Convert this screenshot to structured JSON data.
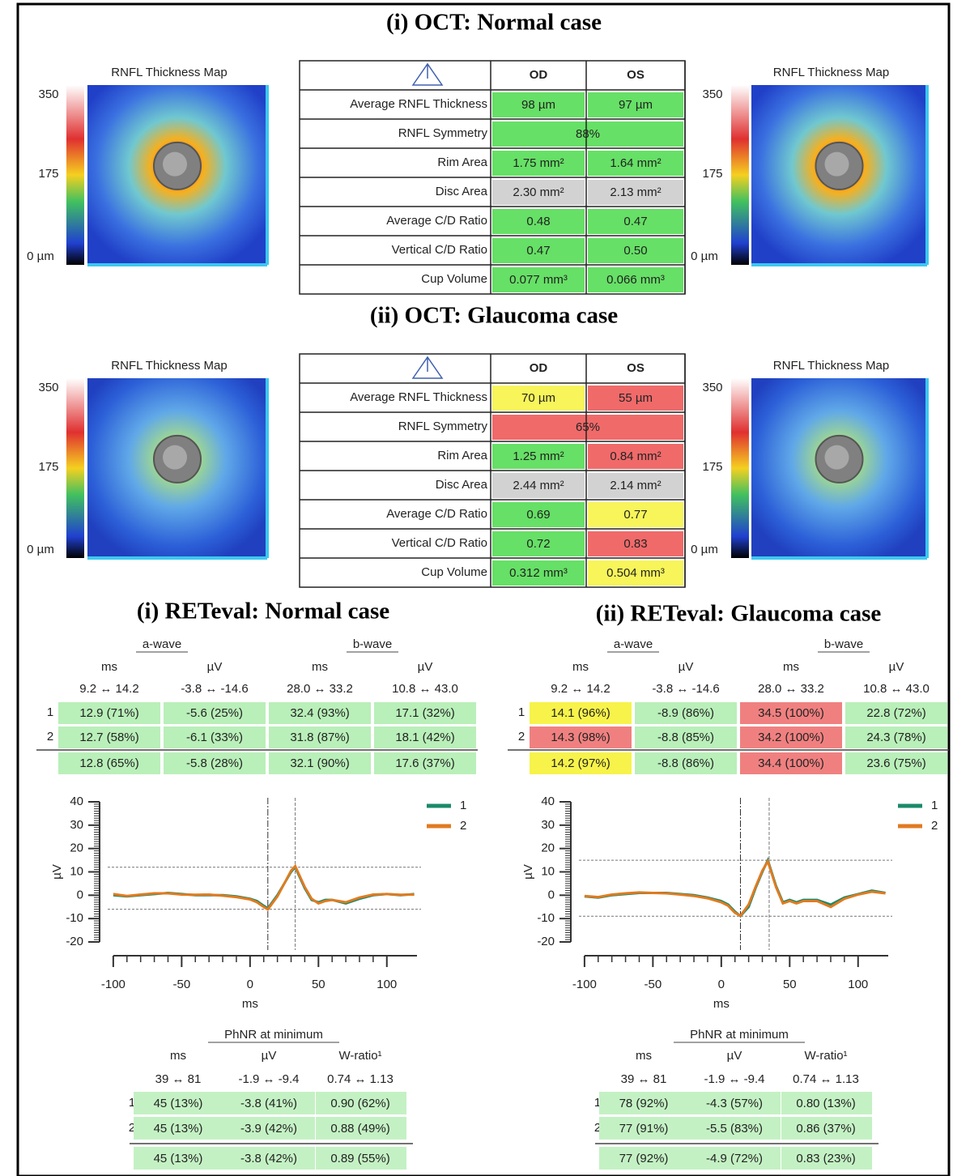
{
  "oct": [
    {
      "title": "(i) OCT: Normal case",
      "maps": [
        {
          "title": "RNFL Thickness Map",
          "scale": [
            "350",
            "175",
            "0 µm"
          ]
        },
        {
          "title": "RNFL Thickness Map",
          "scale": [
            "350",
            "175",
            "0 µm"
          ]
        }
      ],
      "table": {
        "header": [
          "OD",
          "OS"
        ],
        "rows": [
          {
            "label": "Average RNFL Thickness",
            "values": [
              "98 µm",
              "97 µm"
            ],
            "colors": [
              "#66e066",
              "#66e066"
            ]
          },
          {
            "label": "RNFL Symmetry",
            "values": [
              "88%"
            ],
            "colors": [
              "#66e066"
            ]
          },
          {
            "label": "Rim Area",
            "values": [
              "1.75 mm²",
              "1.64 mm²"
            ],
            "colors": [
              "#66e066",
              "#66e066"
            ]
          },
          {
            "label": "Disc Area",
            "values": [
              "2.30 mm²",
              "2.13 mm²"
            ],
            "colors": [
              "#d2d2d2",
              "#d2d2d2"
            ]
          },
          {
            "label": "Average C/D Ratio",
            "values": [
              "0.48",
              "0.47"
            ],
            "colors": [
              "#66e066",
              "#66e066"
            ]
          },
          {
            "label": "Vertical C/D Ratio",
            "values": [
              "0.47",
              "0.50"
            ],
            "colors": [
              "#66e066",
              "#66e066"
            ]
          },
          {
            "label": "Cup Volume",
            "values": [
              "0.077 mm³",
              "0.066 mm³"
            ],
            "colors": [
              "#66e066",
              "#66e066"
            ]
          }
        ]
      }
    },
    {
      "title": "(ii) OCT: Glaucoma case",
      "maps": [
        {
          "title": "RNFL Thickness Map",
          "scale": [
            "350",
            "175",
            "0 µm"
          ]
        },
        {
          "title": "RNFL Thickness Map",
          "scale": [
            "350",
            "175",
            "0 µm"
          ]
        }
      ],
      "table": {
        "header": [
          "OD",
          "OS"
        ],
        "rows": [
          {
            "label": "Average RNFL Thickness",
            "values": [
              "70 µm",
              "55 µm"
            ],
            "colors": [
              "#f7f55a",
              "#f06a6a"
            ]
          },
          {
            "label": "RNFL Symmetry",
            "values": [
              "65%"
            ],
            "colors": [
              "#f06a6a"
            ]
          },
          {
            "label": "Rim Area",
            "values": [
              "1.25 mm²",
              "0.84 mm²"
            ],
            "colors": [
              "#66e066",
              "#f06a6a"
            ]
          },
          {
            "label": "Disc Area",
            "values": [
              "2.44 mm²",
              "2.14 mm²"
            ],
            "colors": [
              "#d2d2d2",
              "#d2d2d2"
            ]
          },
          {
            "label": "Average C/D Ratio",
            "values": [
              "0.69",
              "0.77"
            ],
            "colors": [
              "#66e066",
              "#f7f55a"
            ]
          },
          {
            "label": "Vertical C/D Ratio",
            "values": [
              "0.72",
              "0.83"
            ],
            "colors": [
              "#66e066",
              "#f06a6a"
            ]
          },
          {
            "label": "Cup Volume",
            "values": [
              "0.312 mm³",
              "0.504 mm³"
            ],
            "colors": [
              "#66e066",
              "#f7f55a"
            ]
          }
        ]
      }
    }
  ],
  "reteval": [
    {
      "title": "(i) RETeval: Normal case",
      "groups": [
        "a-wave",
        "b-wave"
      ],
      "units": [
        "ms",
        "µV",
        "ms",
        "µV"
      ],
      "ranges": [
        "9.2 ↔ 14.2",
        "-3.8 ↔ -14.6",
        "28.0 ↔ 33.2",
        "10.8 ↔ 43.0"
      ],
      "rows": [
        {
          "label": "1",
          "values": [
            "12.9 (71%)",
            "-5.6 (25%)",
            "32.4 (93%)",
            "17.1 (32%)"
          ],
          "colors": [
            "#b9efb9",
            "#b9efb9",
            "#b9efb9",
            "#b9efb9"
          ]
        },
        {
          "label": "2",
          "values": [
            "12.7 (58%)",
            "-6.1 (33%)",
            "31.8 (87%)",
            "18.1 (42%)"
          ],
          "colors": [
            "#b9efb9",
            "#b9efb9",
            "#b9efb9",
            "#b9efb9"
          ]
        },
        {
          "values": [
            "12.8 (65%)",
            "-5.8 (28%)",
            "32.1 (90%)",
            "17.6 (37%)"
          ],
          "colors": [
            "#b9efb9",
            "#b9efb9",
            "#b9efb9",
            "#b9efb9"
          ]
        }
      ],
      "chart": {
        "type": "line",
        "xlabel": "ms",
        "ylabel": "µV",
        "x": [
          -100,
          -90,
          -80,
          -70,
          -60,
          -50,
          -40,
          -30,
          -20,
          -10,
          0,
          5,
          10,
          13,
          20,
          25,
          30,
          33,
          40,
          45,
          50,
          55,
          60,
          70,
          80,
          90,
          100,
          110,
          120
        ],
        "series": [
          {
            "name": "1",
            "color": "#1a8a6a",
            "values": [
              0,
              -0.5,
              0,
              0.5,
              1,
              0.5,
              0,
              0,
              0,
              -0.5,
              -1.5,
              -2.5,
              -4.5,
              -5.6,
              0,
              5,
              10,
              12,
              3,
              -2,
              -3,
              -2,
              -2,
              -3.5,
              -1.5,
              0,
              0.5,
              0,
              0.5
            ]
          },
          {
            "name": "2",
            "color": "#e07b20",
            "values": [
              0.5,
              -0.3,
              0.3,
              0.8,
              0.8,
              0.3,
              0.2,
              0.3,
              -0.2,
              -0.8,
              -1.8,
              -3,
              -5,
              -6.1,
              -0.5,
              5,
              10.5,
              12.5,
              3.5,
              -1.5,
              -3.5,
              -2.5,
              -2,
              -3,
              -1,
              0.3,
              0.5,
              0.2,
              0.3
            ]
          }
        ],
        "xlim": [
          -110,
          125
        ],
        "ylim": [
          -20,
          40
        ],
        "xticks": [
          -100,
          -50,
          0,
          50,
          100
        ],
        "yticks": [
          -20,
          -10,
          0,
          10,
          20,
          30,
          40
        ],
        "reference_lines": {
          "x": [
            13,
            33
          ],
          "y": [
            -6,
            12
          ]
        }
      },
      "phnr": {
        "title": "PhNR at minimum",
        "units": [
          "ms",
          "µV",
          "W-ratio¹"
        ],
        "ranges": [
          "39 ↔ 81",
          "-1.9 ↔ -9.4",
          "0.74 ↔ 1.13"
        ],
        "rows": [
          {
            "label": "1",
            "values": [
              "45 (13%)",
              "-3.8 (41%)",
              "0.90 (62%)"
            ],
            "colors": [
              "#c4f1c4",
              "#c4f1c4",
              "#c4f1c4"
            ]
          },
          {
            "label": "2",
            "values": [
              "45 (13%)",
              "-3.9 (42%)",
              "0.88 (49%)"
            ],
            "colors": [
              "#c4f1c4",
              "#c4f1c4",
              "#c4f1c4"
            ]
          },
          {
            "values": [
              "45 (13%)",
              "-3.8 (42%)",
              "0.89 (55%)"
            ],
            "colors": [
              "#c4f1c4",
              "#c4f1c4",
              "#c4f1c4"
            ]
          }
        ]
      }
    },
    {
      "title": "(ii) RETeval: Glaucoma case",
      "groups": [
        "a-wave",
        "b-wave"
      ],
      "units": [
        "ms",
        "µV",
        "ms",
        "µV"
      ],
      "ranges": [
        "9.2 ↔ 14.2",
        "-3.8 ↔ -14.6",
        "28.0 ↔ 33.2",
        "10.8 ↔ 43.0"
      ],
      "rows": [
        {
          "label": "1",
          "values": [
            "14.1 (96%)",
            "-8.9 (86%)",
            "34.5 (100%)",
            "22.8 (72%)"
          ],
          "colors": [
            "#f7f34a",
            "#b9efb9",
            "#f08080",
            "#b9efb9"
          ]
        },
        {
          "label": "2",
          "values": [
            "14.3 (98%)",
            "-8.8 (85%)",
            "34.2 (100%)",
            "24.3 (78%)"
          ],
          "colors": [
            "#f08080",
            "#b9efb9",
            "#f08080",
            "#b9efb9"
          ]
        },
        {
          "values": [
            "14.2 (97%)",
            "-8.8 (86%)",
            "34.4 (100%)",
            "23.6 (75%)"
          ],
          "colors": [
            "#f7f34a",
            "#b9efb9",
            "#f08080",
            "#b9efb9"
          ]
        }
      ],
      "chart": {
        "type": "line",
        "xlabel": "ms",
        "ylabel": "µV",
        "x": [
          -100,
          -90,
          -80,
          -70,
          -60,
          -50,
          -40,
          -30,
          -20,
          -10,
          0,
          5,
          10,
          14,
          20,
          25,
          30,
          34,
          40,
          45,
          50,
          55,
          60,
          70,
          80,
          90,
          100,
          110,
          120
        ],
        "series": [
          {
            "name": "1",
            "color": "#1a8a6a",
            "values": [
              -0.5,
              -1,
              0,
              0.5,
              1,
              1,
              1,
              0.5,
              0,
              -1,
              -2.5,
              -4,
              -7,
              -8.9,
              -5,
              3,
              10,
              15,
              4,
              -3,
              -2,
              -3,
              -2,
              -2,
              -4,
              -1,
              0.5,
              2,
              1
            ]
          },
          {
            "name": "2",
            "color": "#e07b20",
            "values": [
              -0.3,
              -0.8,
              0.3,
              0.8,
              1.2,
              1,
              0.8,
              0.3,
              -0.3,
              -1.3,
              -3,
              -4.5,
              -7.5,
              -8.8,
              -4,
              3.5,
              10.5,
              14.5,
              3.5,
              -3.5,
              -2.5,
              -3.5,
              -2.5,
              -2.5,
              -5,
              -1.5,
              0.3,
              1.5,
              0.8
            ]
          }
        ],
        "xlim": [
          -110,
          125
        ],
        "ylim": [
          -20,
          40
        ],
        "xticks": [
          -100,
          -50,
          0,
          50,
          100
        ],
        "yticks": [
          -20,
          -10,
          0,
          10,
          20,
          30,
          40
        ],
        "reference_lines": {
          "x": [
            14,
            35
          ],
          "y": [
            -9,
            15
          ]
        }
      },
      "phnr": {
        "title": "PhNR at minimum",
        "units": [
          "ms",
          "µV",
          "W-ratio¹"
        ],
        "ranges": [
          "39 ↔ 81",
          "-1.9 ↔ -9.4",
          "0.74 ↔ 1.13"
        ],
        "rows": [
          {
            "label": "1",
            "values": [
              "78 (92%)",
              "-4.3 (57%)",
              "0.80 (13%)"
            ],
            "colors": [
              "#c4f1c4",
              "#c4f1c4",
              "#c4f1c4"
            ]
          },
          {
            "label": "2",
            "values": [
              "77 (91%)",
              "-5.5 (83%)",
              "0.86 (37%)"
            ],
            "colors": [
              "#c4f1c4",
              "#c4f1c4",
              "#c4f1c4"
            ]
          },
          {
            "values": [
              "77 (92%)",
              "-4.9 (72%)",
              "0.83 (23%)"
            ],
            "colors": [
              "#c4f1c4",
              "#c4f1c4",
              "#c4f1c4"
            ]
          }
        ]
      }
    }
  ]
}
